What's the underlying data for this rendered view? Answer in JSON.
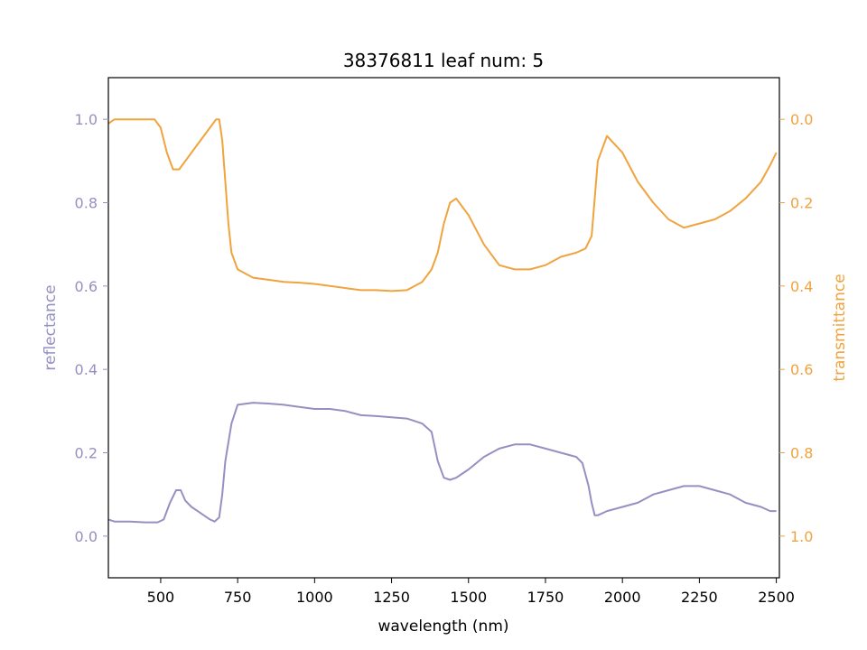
{
  "chart_data": {
    "type": "line",
    "title": "38376811 leaf num: 5",
    "xlabel": "wavelength (nm)",
    "ylabel_left": "reflectance",
    "ylabel_right": "transmittance",
    "xlim": [
      330,
      2510
    ],
    "ylim_left": [
      -0.1,
      1.1
    ],
    "ylim_right": [
      1.1,
      -0.1
    ],
    "right_axis_inverted": true,
    "grid": false,
    "xticks": [
      500,
      750,
      1000,
      1250,
      1500,
      1750,
      2000,
      2250,
      2500
    ],
    "yticks_left": [
      "0.0",
      "0.2",
      "0.4",
      "0.6",
      "0.8",
      "1.0"
    ],
    "yticks_right": [
      "0.0",
      "0.2",
      "0.4",
      "0.6",
      "0.8",
      "1.0"
    ],
    "colors": {
      "reflectance": "#9590c2",
      "transmittance": "#f0a33e"
    },
    "series": [
      {
        "name": "reflectance",
        "axis": "left",
        "x": [
          330,
          350,
          400,
          450,
          490,
          510,
          530,
          550,
          565,
          580,
          600,
          620,
          640,
          660,
          675,
          690,
          700,
          710,
          730,
          750,
          800,
          850,
          900,
          950,
          1000,
          1050,
          1100,
          1150,
          1200,
          1250,
          1300,
          1350,
          1380,
          1400,
          1420,
          1440,
          1460,
          1500,
          1550,
          1600,
          1650,
          1700,
          1750,
          1800,
          1850,
          1870,
          1890,
          1900,
          1910,
          1920,
          1950,
          2000,
          2050,
          2100,
          2150,
          2200,
          2250,
          2300,
          2350,
          2400,
          2450,
          2480,
          2500
        ],
        "y": [
          0.04,
          0.035,
          0.035,
          0.033,
          0.033,
          0.04,
          0.08,
          0.11,
          0.11,
          0.085,
          0.07,
          0.06,
          0.05,
          0.04,
          0.035,
          0.045,
          0.1,
          0.18,
          0.27,
          0.315,
          0.32,
          0.318,
          0.315,
          0.31,
          0.305,
          0.305,
          0.3,
          0.29,
          0.288,
          0.285,
          0.282,
          0.27,
          0.25,
          0.18,
          0.14,
          0.135,
          0.14,
          0.16,
          0.19,
          0.21,
          0.22,
          0.22,
          0.21,
          0.2,
          0.19,
          0.175,
          0.12,
          0.08,
          0.05,
          0.05,
          0.06,
          0.07,
          0.08,
          0.1,
          0.11,
          0.12,
          0.12,
          0.11,
          0.1,
          0.08,
          0.07,
          0.06,
          0.06
        ]
      },
      {
        "name": "transmittance",
        "axis": "right",
        "x": [
          330,
          350,
          400,
          450,
          480,
          500,
          520,
          540,
          560,
          580,
          600,
          620,
          640,
          660,
          680,
          690,
          700,
          710,
          720,
          730,
          750,
          800,
          850,
          900,
          950,
          1000,
          1050,
          1100,
          1150,
          1200,
          1250,
          1300,
          1350,
          1380,
          1400,
          1420,
          1440,
          1460,
          1500,
          1550,
          1600,
          1650,
          1700,
          1750,
          1800,
          1850,
          1880,
          1900,
          1920,
          1950,
          2000,
          2050,
          2100,
          2150,
          2200,
          2250,
          2300,
          2350,
          2400,
          2450,
          2480,
          2500
        ],
        "y": [
          0.01,
          0.0,
          0.0,
          0.0,
          0.0,
          0.02,
          0.08,
          0.12,
          0.12,
          0.1,
          0.08,
          0.06,
          0.04,
          0.02,
          0.0,
          0.0,
          0.05,
          0.15,
          0.25,
          0.32,
          0.36,
          0.38,
          0.385,
          0.39,
          0.392,
          0.395,
          0.4,
          0.405,
          0.41,
          0.41,
          0.412,
          0.41,
          0.39,
          0.36,
          0.32,
          0.25,
          0.2,
          0.19,
          0.23,
          0.3,
          0.35,
          0.36,
          0.36,
          0.35,
          0.33,
          0.32,
          0.31,
          0.28,
          0.1,
          0.04,
          0.08,
          0.15,
          0.2,
          0.24,
          0.26,
          0.25,
          0.24,
          0.22,
          0.19,
          0.15,
          0.11,
          0.08
        ]
      }
    ]
  }
}
